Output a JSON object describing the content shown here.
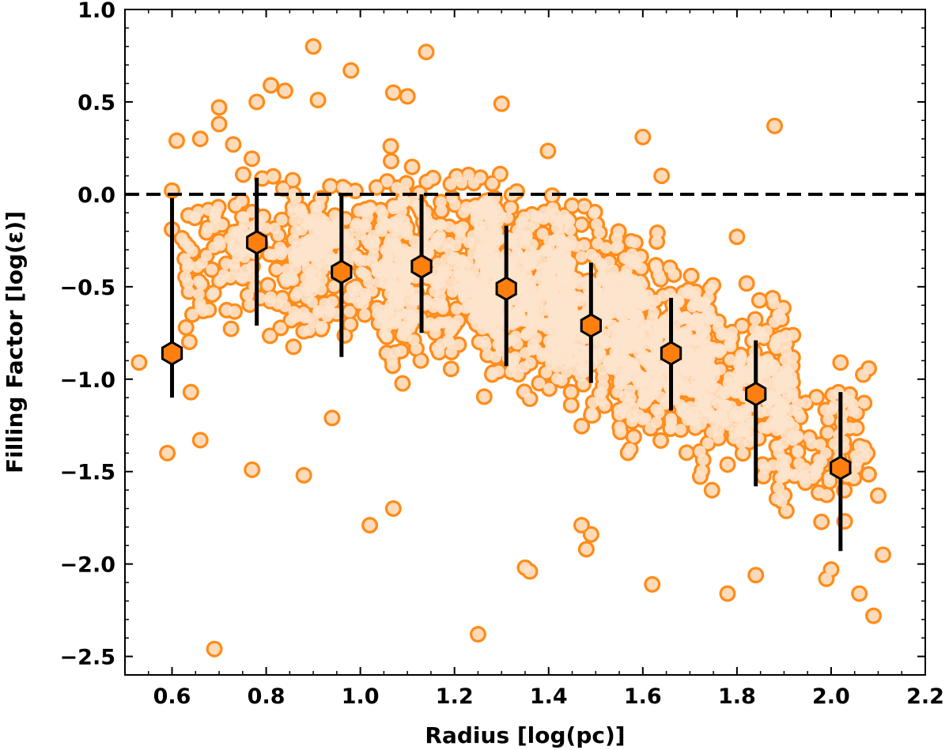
{
  "chart_data": {
    "type": "scatter",
    "title": "",
    "xlabel": "Radius [log(pc)]",
    "ylabel": "Filling Factor [log(ε)]",
    "xlim": [
      0.5,
      2.2
    ],
    "ylim": [
      -2.6,
      1.0
    ],
    "x_ticks": [
      0.6,
      0.8,
      1.0,
      1.2,
      1.4,
      1.6,
      1.8,
      2.0,
      2.2
    ],
    "x_tick_labels": [
      "0.6",
      "0.8",
      "1.0",
      "1.2",
      "1.4",
      "1.6",
      "1.8",
      "2.0",
      "2.2"
    ],
    "y_ticks": [
      1.0,
      0.5,
      0.0,
      -0.5,
      -1.0,
      -1.5,
      -2.0,
      -2.5
    ],
    "y_tick_labels": [
      "1.0",
      "0.5",
      "0.0",
      "−0.5",
      "−1.0",
      "−1.5",
      "−2.0",
      "−2.5"
    ],
    "reference_line": {
      "y": 0.0,
      "style": "dashed",
      "color": "#000000"
    },
    "colors": {
      "point_edge": "#ff8c1a",
      "point_fill": "#fde3cc",
      "bin_marker": "#ff7f0e",
      "errorbar": "#000000"
    },
    "outlier_points": [
      {
        "x": 0.53,
        "y": -0.91
      },
      {
        "x": 0.59,
        "y": -1.4
      },
      {
        "x": 0.6,
        "y": -0.19
      },
      {
        "x": 0.6,
        "y": 0.02
      },
      {
        "x": 0.61,
        "y": 0.29
      },
      {
        "x": 0.64,
        "y": -1.07
      },
      {
        "x": 0.66,
        "y": -1.33
      },
      {
        "x": 0.66,
        "y": -0.59
      },
      {
        "x": 0.66,
        "y": 0.3
      },
      {
        "x": 0.69,
        "y": -2.46
      },
      {
        "x": 0.7,
        "y": 0.38
      },
      {
        "x": 0.7,
        "y": 0.47
      },
      {
        "x": 0.73,
        "y": 0.27
      },
      {
        "x": 0.77,
        "y": -1.49
      },
      {
        "x": 0.78,
        "y": 0.5
      },
      {
        "x": 0.81,
        "y": 0.59
      },
      {
        "x": 0.84,
        "y": 0.56
      },
      {
        "x": 0.88,
        "y": -1.52
      },
      {
        "x": 0.9,
        "y": 0.8
      },
      {
        "x": 0.91,
        "y": 0.51
      },
      {
        "x": 0.94,
        "y": -1.21
      },
      {
        "x": 0.98,
        "y": 0.67
      },
      {
        "x": 1.02,
        "y": -1.79
      },
      {
        "x": 1.07,
        "y": -1.7
      },
      {
        "x": 1.07,
        "y": 0.55
      },
      {
        "x": 1.1,
        "y": 0.53
      },
      {
        "x": 1.14,
        "y": 0.77
      },
      {
        "x": 1.25,
        "y": -2.38
      },
      {
        "x": 1.3,
        "y": 0.49
      },
      {
        "x": 1.35,
        "y": -2.02
      },
      {
        "x": 1.36,
        "y": -2.04
      },
      {
        "x": 1.47,
        "y": -1.79
      },
      {
        "x": 1.48,
        "y": -1.92
      },
      {
        "x": 1.49,
        "y": -1.84
      },
      {
        "x": 1.6,
        "y": 0.31
      },
      {
        "x": 1.62,
        "y": -2.11
      },
      {
        "x": 1.64,
        "y": 0.1
      },
      {
        "x": 1.78,
        "y": -2.16
      },
      {
        "x": 1.8,
        "y": -0.23
      },
      {
        "x": 1.84,
        "y": -2.06
      },
      {
        "x": 1.88,
        "y": 0.37
      },
      {
        "x": 1.89,
        "y": -0.65
      },
      {
        "x": 1.99,
        "y": -2.08
      },
      {
        "x": 2.0,
        "y": -2.03
      },
      {
        "x": 2.02,
        "y": -0.91
      },
      {
        "x": 2.04,
        "y": -1.12
      },
      {
        "x": 2.06,
        "y": -2.16
      },
      {
        "x": 2.07,
        "y": -1.37
      },
      {
        "x": 2.09,
        "y": -2.28
      },
      {
        "x": 2.1,
        "y": -1.63
      },
      {
        "x": 2.11,
        "y": -1.95
      }
    ],
    "dense_cloud": {
      "description": "Dense band of points sampled per radius bin",
      "bins": [
        {
          "x_range": [
            0.62,
            0.92
          ],
          "y_center": -0.35,
          "y_spread": 0.4,
          "count": 150
        },
        {
          "x_range": [
            0.85,
            1.1
          ],
          "y_center": -0.35,
          "y_spread": 0.42,
          "count": 220
        },
        {
          "x_range": [
            1.05,
            1.3
          ],
          "y_center": -0.4,
          "y_spread": 0.45,
          "count": 320
        },
        {
          "x_range": [
            1.25,
            1.45
          ],
          "y_center": -0.5,
          "y_spread": 0.48,
          "count": 360
        },
        {
          "x_range": [
            1.4,
            1.6
          ],
          "y_center": -0.65,
          "y_spread": 0.48,
          "count": 360
        },
        {
          "x_range": [
            1.55,
            1.75
          ],
          "y_center": -0.85,
          "y_spread": 0.45,
          "count": 330
        },
        {
          "x_range": [
            1.72,
            1.92
          ],
          "y_center": -1.05,
          "y_spread": 0.42,
          "count": 230
        },
        {
          "x_range": [
            1.88,
            2.08
          ],
          "y_center": -1.35,
          "y_spread": 0.38,
          "count": 100
        }
      ]
    },
    "binned_medians": [
      {
        "x": 0.6,
        "y": -0.86,
        "err_low": -1.1,
        "err_high": -0.02
      },
      {
        "x": 0.78,
        "y": -0.26,
        "err_low": -0.71,
        "err_high": 0.09
      },
      {
        "x": 0.96,
        "y": -0.42,
        "err_low": -0.88,
        "err_high": 0.0
      },
      {
        "x": 1.13,
        "y": -0.39,
        "err_low": -0.75,
        "err_high": 0.0
      },
      {
        "x": 1.31,
        "y": -0.51,
        "err_low": -0.93,
        "err_high": -0.17
      },
      {
        "x": 1.49,
        "y": -0.71,
        "err_low": -1.02,
        "err_high": -0.37
      },
      {
        "x": 1.66,
        "y": -0.86,
        "err_low": -1.17,
        "err_high": -0.56
      },
      {
        "x": 1.84,
        "y": -1.08,
        "err_low": -1.58,
        "err_high": -0.79
      },
      {
        "x": 2.02,
        "y": -1.48,
        "err_low": -1.93,
        "err_high": -1.07
      }
    ]
  }
}
